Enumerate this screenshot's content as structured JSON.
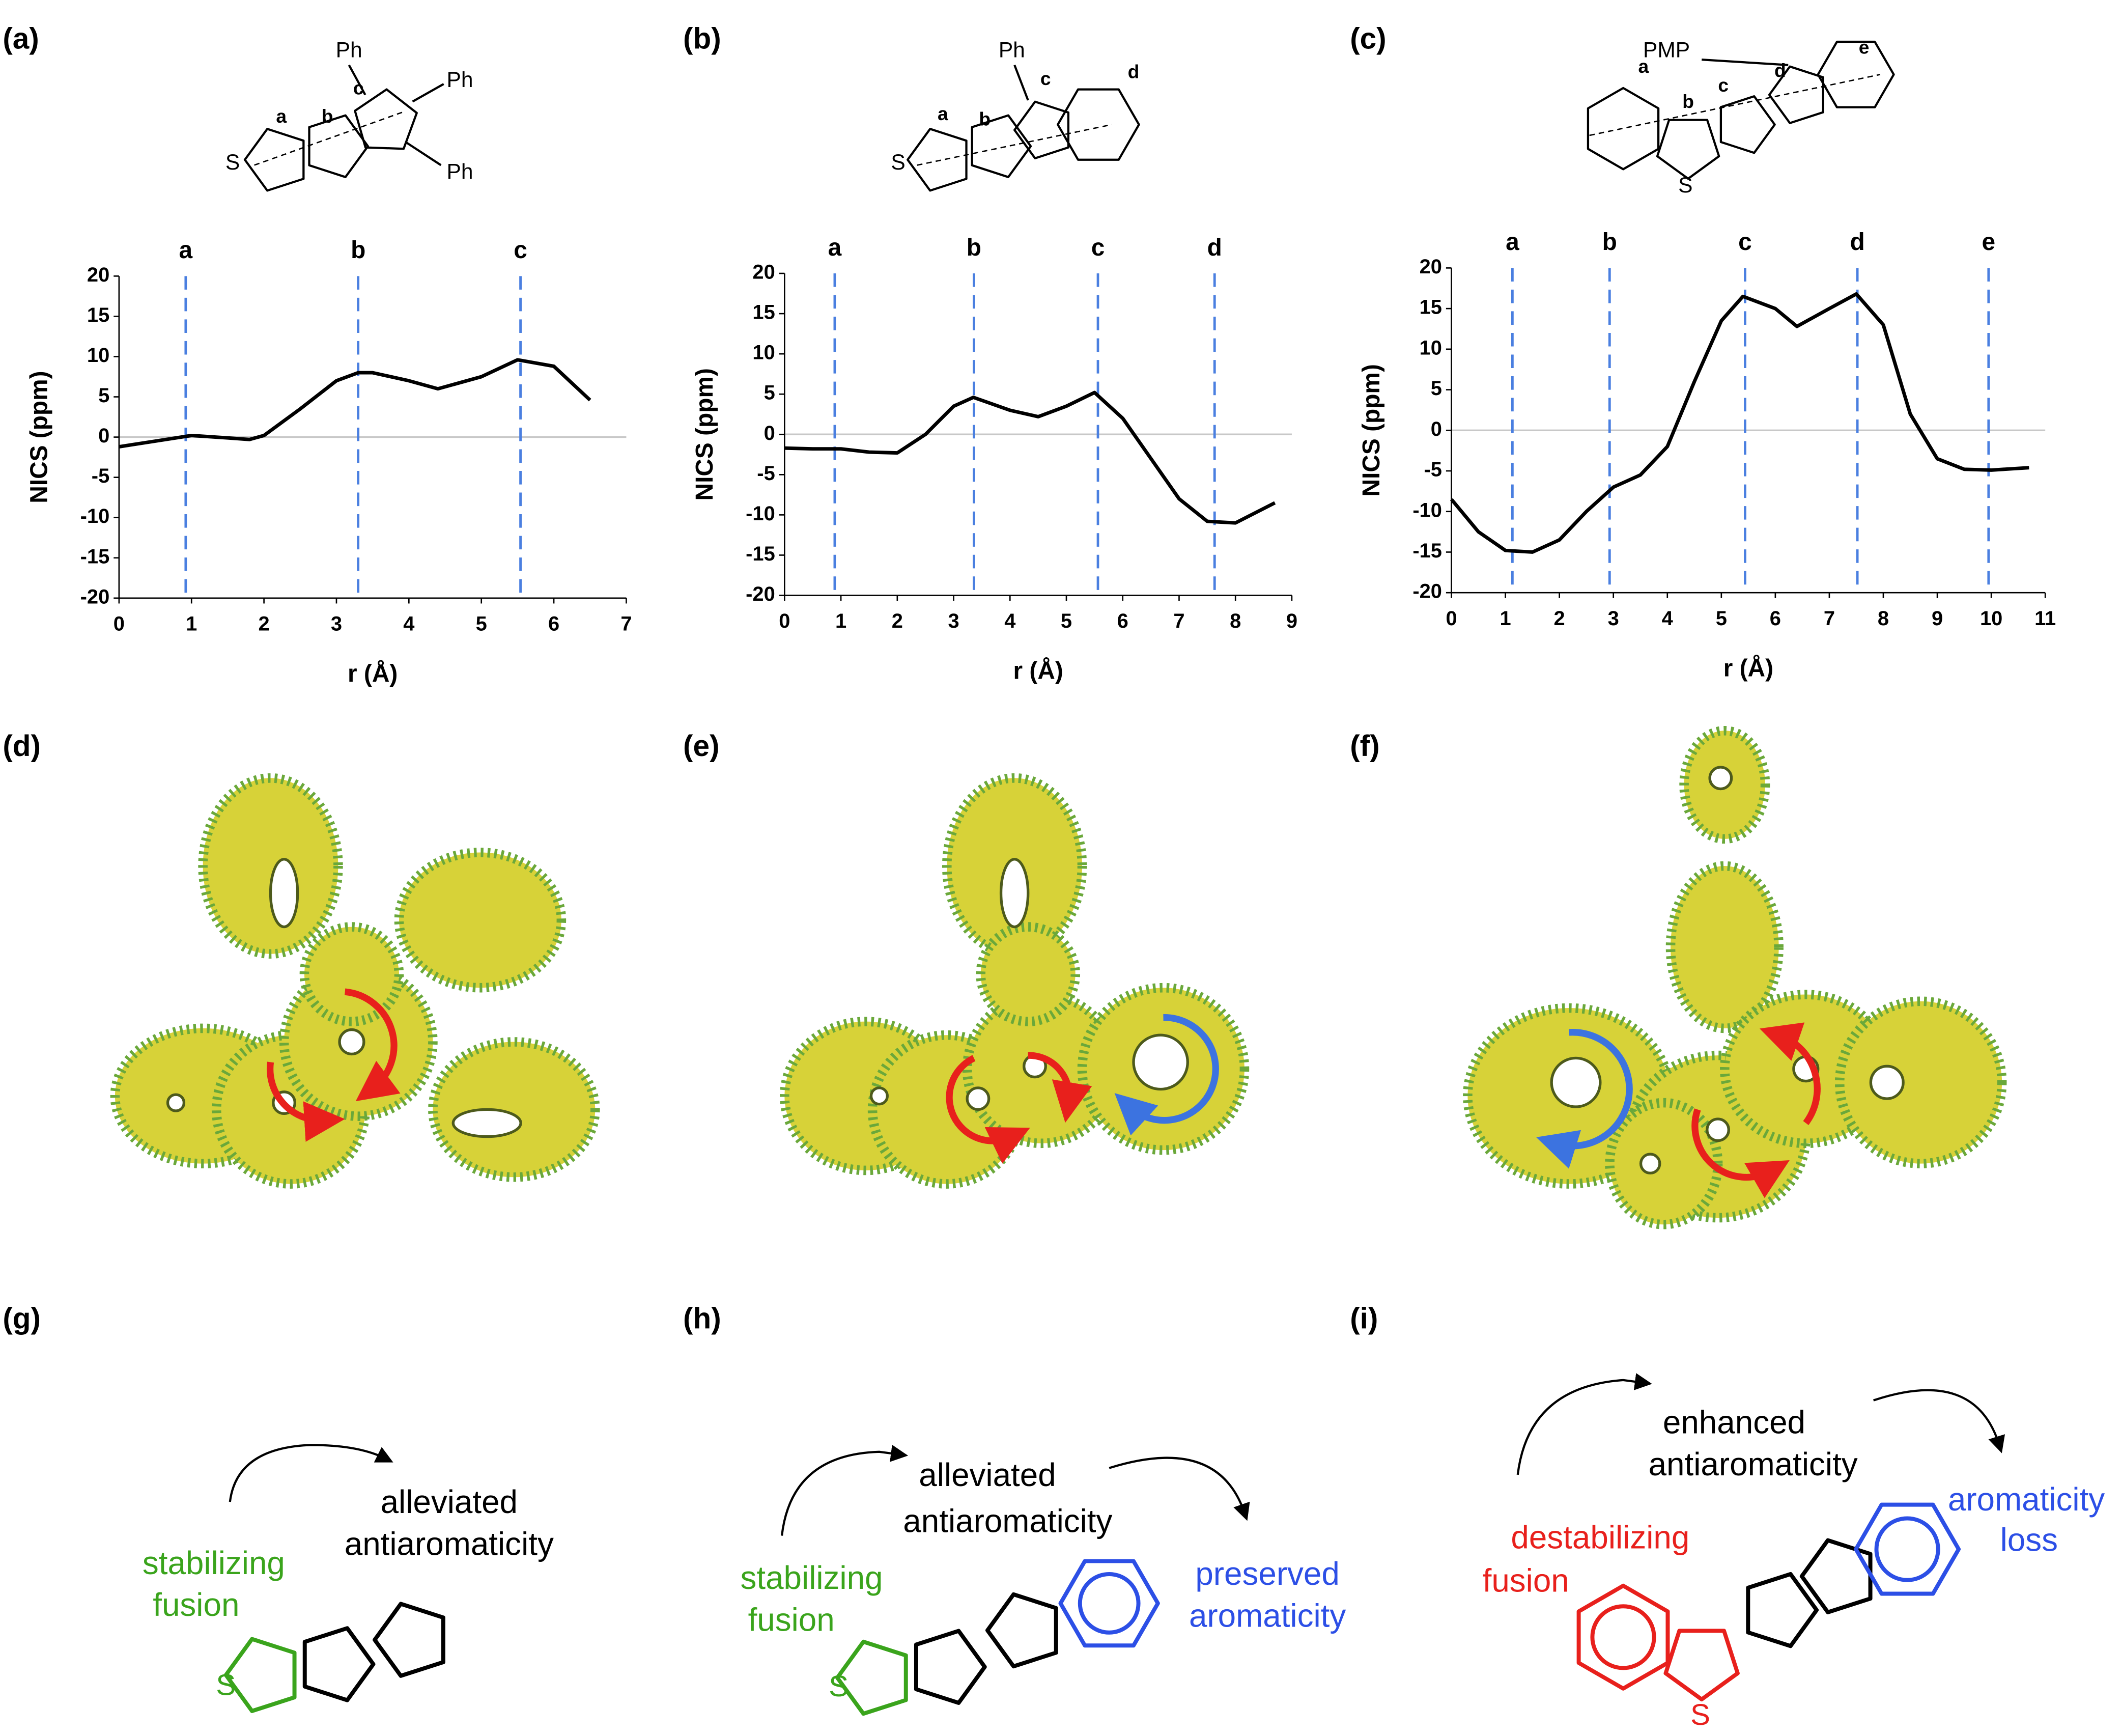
{
  "panel_labels": [
    "(a)",
    "(b)",
    "(c)",
    "(d)",
    "(e)",
    "(f)",
    "(g)",
    "(h)",
    "(i)"
  ],
  "chart_data": [
    {
      "type": "line",
      "xlabel": "r (Å)",
      "ylabel": "NICS (ppm)",
      "x": [
        0,
        0.5,
        1,
        1.5,
        1.8,
        2,
        2.5,
        3,
        3.3,
        3.5,
        4,
        4.4,
        5,
        5.5,
        6,
        6.5
      ],
      "series": [
        {
          "color": "#000000",
          "values": [
            -1.2,
            -0.5,
            0.2,
            -0.1,
            -0.3,
            0.2,
            3.5,
            7,
            8,
            8,
            7,
            6,
            7.5,
            9.6,
            8.8,
            4.6
          ]
        }
      ],
      "xlim": [
        0,
        7
      ],
      "xticks": [
        0,
        1,
        2,
        3,
        4,
        5,
        6,
        7
      ],
      "ylim": [
        -20,
        20
      ],
      "yticks": [
        -20,
        -15,
        -10,
        -5,
        0,
        5,
        10,
        15,
        20
      ],
      "zero_line": true,
      "marker_color": "#4a7fe0",
      "markers": [
        {
          "x": 0.92,
          "label": "a"
        },
        {
          "x": 3.3,
          "label": "b"
        },
        {
          "x": 5.54,
          "label": "c"
        }
      ]
    },
    {
      "type": "line",
      "xlabel": "r (Å)",
      "ylabel": "NICS (ppm)",
      "x": [
        0,
        0.5,
        1,
        1.5,
        2,
        2.5,
        3,
        3.35,
        4,
        4.5,
        5,
        5.5,
        6,
        6.5,
        7,
        7.5,
        8,
        8.7
      ],
      "series": [
        {
          "color": "#000000",
          "values": [
            -1.7,
            -1.8,
            -1.8,
            -2.2,
            -2.3,
            0,
            3.5,
            4.6,
            3,
            2.2,
            3.5,
            5.2,
            2,
            -3,
            -8,
            -10.8,
            -11,
            -8.5
          ]
        }
      ],
      "xlim": [
        0,
        9
      ],
      "xticks": [
        0,
        1,
        2,
        3,
        4,
        5,
        6,
        7,
        8,
        9
      ],
      "ylim": [
        -20,
        20
      ],
      "yticks": [
        -20,
        -15,
        -10,
        -5,
        0,
        5,
        10,
        15,
        20
      ],
      "zero_line": true,
      "marker_color": "#4a7fe0",
      "markers": [
        {
          "x": 0.89,
          "label": "a"
        },
        {
          "x": 3.36,
          "label": "b"
        },
        {
          "x": 5.56,
          "label": "c"
        },
        {
          "x": 7.63,
          "label": "d"
        }
      ]
    },
    {
      "type": "line",
      "xlabel": "r (Å)",
      "ylabel": "NICS (ppm)",
      "x": [
        0,
        0.5,
        1,
        1.5,
        2,
        2.5,
        3,
        3.5,
        4,
        4.5,
        5,
        5.4,
        6,
        6.4,
        7,
        7.5,
        8,
        8.5,
        9,
        9.5,
        10,
        10.7
      ],
      "series": [
        {
          "color": "#000000",
          "values": [
            -8.5,
            -12.5,
            -14.8,
            -15,
            -13.5,
            -10,
            -7,
            -5.5,
            -2,
            6,
            13.5,
            16.5,
            15,
            12.8,
            15,
            16.8,
            13,
            2,
            -3.5,
            -4.8,
            -4.9,
            -4.6
          ]
        }
      ],
      "xlim": [
        0,
        11
      ],
      "xticks": [
        0,
        1,
        2,
        3,
        4,
        5,
        6,
        7,
        8,
        9,
        10,
        11
      ],
      "ylim": [
        -20,
        20
      ],
      "yticks": [
        -20,
        -15,
        -10,
        -5,
        0,
        5,
        10,
        15,
        20
      ],
      "zero_line": true,
      "marker_color": "#4a7fe0",
      "markers": [
        {
          "x": 1.13,
          "label": "a"
        },
        {
          "x": 2.93,
          "label": "b"
        },
        {
          "x": 5.44,
          "label": "c"
        },
        {
          "x": 7.52,
          "label": "d"
        },
        {
          "x": 9.95,
          "label": "e"
        }
      ]
    }
  ],
  "structures": [
    {
      "labels": [
        "Ph",
        "Ph",
        "Ph",
        "S",
        "a",
        "b",
        "c"
      ]
    },
    {
      "labels": [
        "Ph",
        "S",
        "a",
        "b",
        "c",
        "d"
      ]
    },
    {
      "labels": [
        "PMP",
        "S",
        "a",
        "b",
        "c",
        "d",
        "e"
      ]
    }
  ],
  "schemes": [
    {
      "center": [
        "alleviated",
        "antiaromaticity"
      ],
      "left": [
        "stabilizing",
        "fusion"
      ],
      "atom": "S"
    },
    {
      "center": [
        "alleviated",
        "antiaromaticity"
      ],
      "left": [
        "stabilizing",
        "fusion"
      ],
      "right": [
        "preserved",
        "aromaticity"
      ],
      "atom": "S"
    },
    {
      "center": [
        "enhanced",
        "antiaromaticity"
      ],
      "left": [
        "destabilizing",
        "fusion"
      ],
      "right": [
        "aromaticity",
        "loss"
      ],
      "atom": "S"
    }
  ]
}
